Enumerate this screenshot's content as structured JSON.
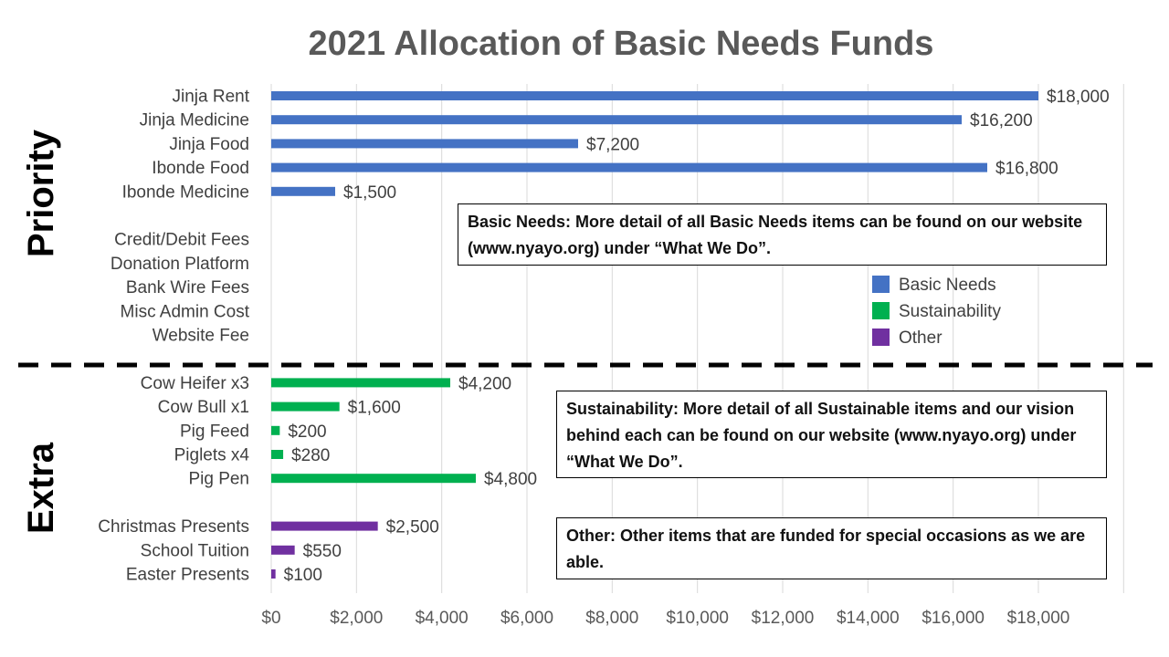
{
  "chart_data": {
    "type": "bar",
    "orientation": "horizontal",
    "title": "2021 Allocation of Basic Needs Funds",
    "xlim": [
      0,
      20000
    ],
    "x_ticks": [
      "$0",
      "$2,000",
      "$4,000",
      "$6,000",
      "$8,000",
      "$10,000",
      "$12,000",
      "$14,000",
      "$16,000",
      "$18,000"
    ],
    "grid": "vertical",
    "groups": [
      "Priority",
      "Extra"
    ],
    "categories": [
      {
        "label": "Jinja Rent",
        "value": 18000,
        "value_label": "$18,000",
        "series": "Basic Needs",
        "group": "Priority"
      },
      {
        "label": "Jinja Medicine",
        "value": 16200,
        "value_label": "$16,200",
        "series": "Basic Needs",
        "group": "Priority"
      },
      {
        "label": "Jinja Food",
        "value": 7200,
        "value_label": "$7,200",
        "series": "Basic Needs",
        "group": "Priority"
      },
      {
        "label": "Ibonde Food",
        "value": 16800,
        "value_label": "$16,800",
        "series": "Basic Needs",
        "group": "Priority"
      },
      {
        "label": "Ibonde Medicine",
        "value": 1500,
        "value_label": "$1,500",
        "series": "Basic Needs",
        "group": "Priority"
      },
      {
        "label": "",
        "value": null,
        "value_label": "",
        "series": "",
        "group": "Priority"
      },
      {
        "label": "Credit/Debit Fees",
        "value": null,
        "value_label": "",
        "series": "Other",
        "group": "Priority"
      },
      {
        "label": "Donation Platform",
        "value": null,
        "value_label": "",
        "series": "Other",
        "group": "Priority"
      },
      {
        "label": "Bank Wire Fees",
        "value": null,
        "value_label": "",
        "series": "Other",
        "group": "Priority"
      },
      {
        "label": "Misc Admin Cost",
        "value": null,
        "value_label": "",
        "series": "Other",
        "group": "Priority"
      },
      {
        "label": "Website Fee",
        "value": null,
        "value_label": "",
        "series": "Other",
        "group": "Priority"
      },
      {
        "label": "",
        "value": null,
        "value_label": "",
        "series": "",
        "group": "Extra"
      },
      {
        "label": "Cow Heifer x3",
        "value": 4200,
        "value_label": "$4,200",
        "series": "Sustainability",
        "group": "Extra"
      },
      {
        "label": "Cow Bull x1",
        "value": 1600,
        "value_label": "$1,600",
        "series": "Sustainability",
        "group": "Extra"
      },
      {
        "label": "Pig Feed",
        "value": 200,
        "value_label": "$200",
        "series": "Sustainability",
        "group": "Extra"
      },
      {
        "label": "Piglets x4",
        "value": 280,
        "value_label": "$280",
        "series": "Sustainability",
        "group": "Extra"
      },
      {
        "label": "Pig Pen",
        "value": 4800,
        "value_label": "$4,800",
        "series": "Sustainability",
        "group": "Extra"
      },
      {
        "label": "",
        "value": null,
        "value_label": "",
        "series": "",
        "group": "Extra"
      },
      {
        "label": "Christmas Presents",
        "value": 2500,
        "value_label": "$2,500",
        "series": "Other",
        "group": "Extra"
      },
      {
        "label": "School Tuition",
        "value": 550,
        "value_label": "$550",
        "series": "Other",
        "group": "Extra"
      },
      {
        "label": "Easter Presents",
        "value": 100,
        "value_label": "$100",
        "series": "Other",
        "group": "Extra"
      }
    ],
    "series": [
      {
        "name": "Basic Needs",
        "color": "#4472C4"
      },
      {
        "name": "Sustainability",
        "color": "#00B050"
      },
      {
        "name": "Other",
        "color": "#7030A0"
      }
    ],
    "legend": "right, inside plot",
    "divider": "dashed line between Priority and Extra"
  },
  "notes": {
    "basic_needs": "Basic Needs: More detail of all Basic Needs items can be found on our website (www.nyayo.org) under “What We Do”.",
    "sustainability": "Sustainability: More detail of all Sustainable items and our vision behind each can be found on our website (www.nyayo.org) under “What We Do”.",
    "other": "Other: Other items that are funded for special occasions as we are able."
  }
}
